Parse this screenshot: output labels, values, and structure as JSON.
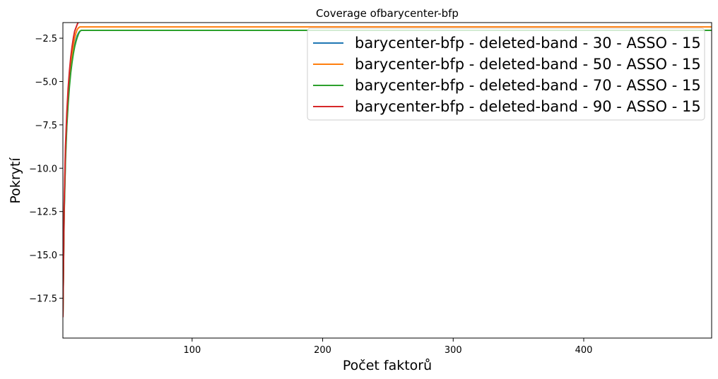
{
  "chart_data": {
    "type": "line",
    "title": "Coverage ofbarycenter-bfp",
    "xlabel": "Počet faktorů",
    "ylabel": "Pokrytí",
    "xlim": [
      1,
      498
    ],
    "ylim": [
      -19.8,
      -1.6
    ],
    "xticks": [
      100,
      200,
      300,
      400
    ],
    "yticks": [
      -17.5,
      -15.0,
      -12.5,
      -10.0,
      -7.5,
      -5.0,
      -2.5
    ],
    "xtick_labels": [
      "100",
      "200",
      "300",
      "400"
    ],
    "ytick_labels": [
      "−17.5",
      "−15.0",
      "−12.5",
      "−10.0",
      "−7.5",
      "−5.0",
      "−2.5"
    ],
    "grid": false,
    "legend_position": "top-right",
    "series": [
      {
        "name": "barycenter-bfp - deleted-band - 30 - ASSO - 15",
        "color": "#1f77b4",
        "x": [
          1,
          2,
          3,
          4,
          5,
          6,
          7,
          8,
          9,
          10,
          11,
          12,
          13,
          14,
          15,
          498
        ],
        "y": [
          -18.6,
          -12.4,
          -9.3,
          -7.4,
          -6.1,
          -5.1,
          -4.4,
          -3.8,
          -3.3,
          -2.9,
          -2.6,
          -2.35,
          -2.2,
          -2.1,
          -2.05,
          -2.05
        ]
      },
      {
        "name": "barycenter-bfp - deleted-band - 50 - ASSO - 15",
        "color": "#ff7f0e",
        "x": [
          1,
          2,
          3,
          4,
          5,
          6,
          7,
          8,
          9,
          10,
          11,
          12,
          13,
          14,
          498
        ],
        "y": [
          -18.6,
          -12.2,
          -9.0,
          -7.1,
          -5.8,
          -4.8,
          -4.0,
          -3.4,
          -2.9,
          -2.5,
          -2.2,
          -2.0,
          -1.9,
          -1.85,
          -1.85
        ]
      },
      {
        "name": "barycenter-bfp - deleted-band - 70 - ASSO - 15",
        "color": "#2ca02c",
        "x": [
          1,
          2,
          3,
          4,
          5,
          6,
          7,
          8,
          9,
          10,
          11,
          12,
          13,
          14,
          15,
          498
        ],
        "y": [
          -18.6,
          -12.6,
          -9.5,
          -7.6,
          -6.3,
          -5.3,
          -4.5,
          -3.9,
          -3.4,
          -3.0,
          -2.7,
          -2.45,
          -2.25,
          -2.1,
          -2.05,
          -2.05
        ]
      },
      {
        "name": "barycenter-bfp - deleted-band - 90 - ASSO - 15",
        "color": "#d62728",
        "x": [
          1,
          2,
          3,
          4,
          5,
          6,
          7,
          8,
          9,
          10,
          11,
          12,
          13
        ],
        "y": [
          -18.6,
          -12.0,
          -8.7,
          -6.8,
          -5.4,
          -4.4,
          -3.6,
          -3.0,
          -2.5,
          -2.1,
          -1.9,
          -1.7,
          -1.55
        ]
      }
    ]
  }
}
